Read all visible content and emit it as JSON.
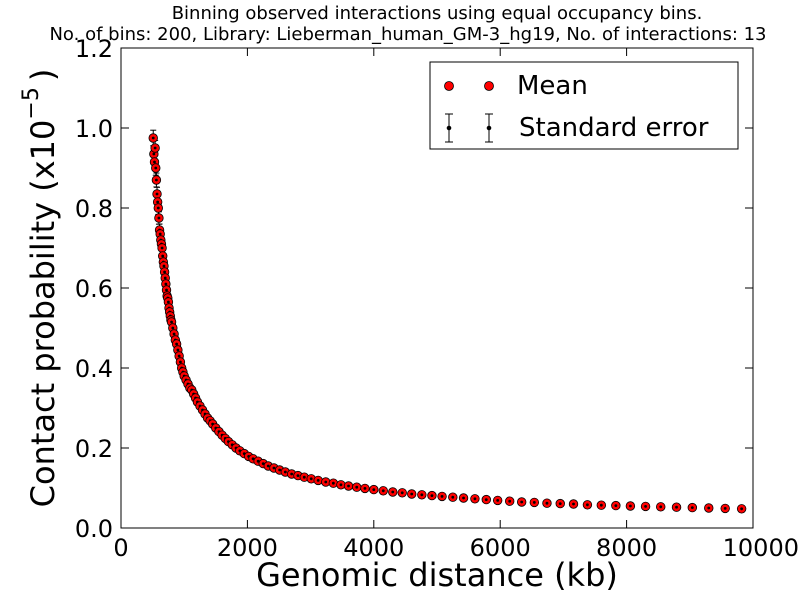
{
  "chart_data": {
    "type": "scatter",
    "title": "Binning observed interactions using equal occupancy bins.",
    "subtitle": "No. of bins: 200, Library: Lieberman_human_GM-3_hg19, No. of interactions: 13",
    "xlabel": "Genomic distance (kb)",
    "ylabel_text": "Contact probability (x10",
    "ylabel_exponent": "−5",
    "ylabel_close": ")",
    "xlim": [
      0,
      10000
    ],
    "ylim": [
      0.0,
      1.2
    ],
    "x_ticks": [
      0,
      2000,
      4000,
      6000,
      8000,
      10000
    ],
    "x_tick_labels": [
      "0",
      "2000",
      "4000",
      "6000",
      "8000",
      "10000"
    ],
    "y_ticks": [
      0.0,
      0.2,
      0.4,
      0.6,
      0.8,
      1.0,
      1.2
    ],
    "y_tick_labels": [
      "0.0",
      "0.2",
      "0.4",
      "0.6",
      "0.8",
      "1.0",
      "1.2"
    ],
    "grid": false,
    "legend_position": "top-right",
    "colors": {
      "mean": "#ff0000",
      "marker_edge": "#000000",
      "error": "#000000"
    },
    "series": [
      {
        "name": "Mean",
        "x": [
          510,
          520,
          530,
          540,
          550,
          560,
          570,
          580,
          590,
          600,
          610,
          620,
          630,
          640,
          650,
          660,
          670,
          680,
          690,
          700,
          710,
          720,
          730,
          740,
          750,
          760,
          770,
          780,
          790,
          800,
          820,
          840,
          860,
          880,
          900,
          920,
          940,
          960,
          980,
          1000,
          1030,
          1060,
          1090,
          1120,
          1150,
          1180,
          1210,
          1250,
          1290,
          1330,
          1370,
          1410,
          1450,
          1500,
          1550,
          1600,
          1650,
          1700,
          1760,
          1820,
          1880,
          1950,
          2020,
          2090,
          2170,
          2250,
          2330,
          2420,
          2510,
          2600,
          2700,
          2800,
          2900,
          3010,
          3120,
          3240,
          3360,
          3480,
          3600,
          3730,
          3860,
          4000,
          4150,
          4300,
          4450,
          4600,
          4760,
          4920,
          5080,
          5250,
          5420,
          5600,
          5780,
          5960,
          6150,
          6340,
          6540,
          6740,
          6950,
          7160,
          7380,
          7600,
          7830,
          8060,
          8300,
          8540,
          8790,
          9040,
          9300,
          9560,
          9820
        ],
        "y": [
          0.975,
          0.935,
          0.915,
          0.95,
          0.9,
          0.87,
          0.835,
          0.815,
          0.8,
          0.775,
          0.745,
          0.735,
          0.72,
          0.71,
          0.7,
          0.68,
          0.665,
          0.655,
          0.64,
          0.625,
          0.61,
          0.595,
          0.58,
          0.575,
          0.565,
          0.55,
          0.54,
          0.53,
          0.52,
          0.515,
          0.5,
          0.485,
          0.47,
          0.46,
          0.445,
          0.43,
          0.415,
          0.4,
          0.39,
          0.38,
          0.37,
          0.36,
          0.35,
          0.345,
          0.335,
          0.325,
          0.315,
          0.305,
          0.295,
          0.285,
          0.275,
          0.268,
          0.26,
          0.25,
          0.241,
          0.232,
          0.224,
          0.216,
          0.208,
          0.2,
          0.193,
          0.186,
          0.179,
          0.173,
          0.167,
          0.161,
          0.155,
          0.15,
          0.145,
          0.14,
          0.135,
          0.131,
          0.127,
          0.123,
          0.119,
          0.115,
          0.112,
          0.108,
          0.105,
          0.102,
          0.099,
          0.096,
          0.093,
          0.09,
          0.088,
          0.085,
          0.083,
          0.081,
          0.079,
          0.077,
          0.075,
          0.073,
          0.071,
          0.069,
          0.067,
          0.065,
          0.064,
          0.062,
          0.061,
          0.06,
          0.058,
          0.057,
          0.056,
          0.055,
          0.054,
          0.053,
          0.052,
          0.051,
          0.05,
          0.049,
          0.048
        ]
      },
      {
        "name": "Standard error",
        "error_magnitude": 0.02
      }
    ]
  }
}
